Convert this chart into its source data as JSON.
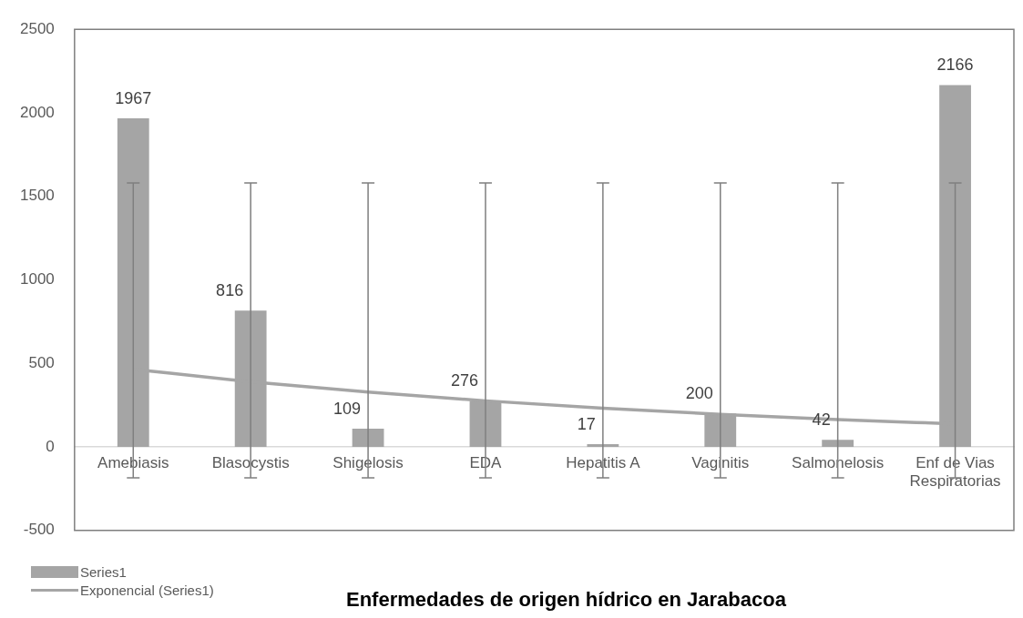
{
  "chart_data": {
    "type": "bar",
    "title": "Enfermedades de origen hídrico en Jarabacoa",
    "categories": [
      "Amebiasis",
      "Blasocystis",
      "Shigelosis",
      "EDA",
      "Hepatitis A",
      "Vaginitis",
      "Salmonelosis",
      "Enf de Vias Respiratorias"
    ],
    "series": [
      {
        "name": "Series1",
        "color": "#a5a5a5",
        "values": [
          1967,
          816,
          109,
          276,
          17,
          200,
          42,
          2166
        ],
        "value_labels": [
          "1967",
          "816",
          "109",
          "276",
          "17",
          "200",
          "42",
          "2166"
        ],
        "errors": [
          [
            -185,
            1580
          ],
          [
            -185,
            1580
          ],
          [
            -185,
            1580
          ],
          [
            -185,
            1580
          ],
          [
            -185,
            1580
          ],
          [
            -185,
            1580
          ],
          [
            -185,
            1580
          ],
          [
            -185,
            1580
          ]
        ]
      },
      {
        "name": "Exponencial (Series1)",
        "type": "line",
        "color": "#a5a5a5",
        "values": [
          465,
          390,
          328,
          276,
          232,
          195,
          164,
          138
        ]
      }
    ],
    "ylim": [
      -500,
      2500
    ],
    "yticks": [
      -500,
      0,
      500,
      1000,
      1500,
      2000,
      2500
    ],
    "grid": false,
    "legend": "bottom left",
    "marker": "none",
    "line_style": "solid"
  }
}
